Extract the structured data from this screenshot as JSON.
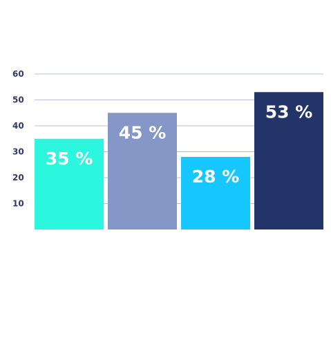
{
  "chart_data": {
    "type": "bar",
    "title": "",
    "xlabel": "",
    "ylabel": "",
    "ylim": [
      0,
      60
    ],
    "y_ticks": [
      10,
      20,
      30,
      40,
      50,
      60
    ],
    "grid": true,
    "legend": "none",
    "categories": [
      "",
      "",
      "",
      ""
    ],
    "values": [
      35,
      45,
      28,
      53
    ],
    "data_labels": [
      "35 %",
      "45 %",
      "28 %",
      "53 %"
    ],
    "colors": [
      "#2bf7de",
      "#8497c7",
      "#16c8ff",
      "#233468"
    ],
    "tick_color": "#2c3a6b",
    "grid_color": "#b7bfd9",
    "label_color": "#ffffff"
  }
}
